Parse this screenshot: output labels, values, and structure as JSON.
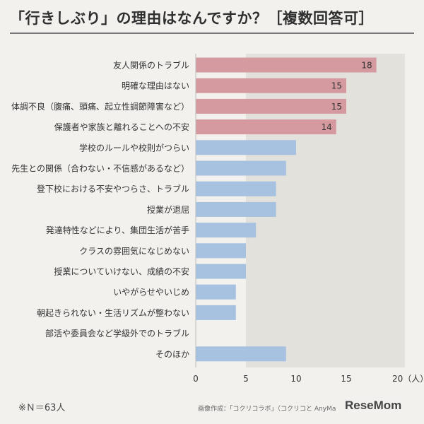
{
  "title": "「行きしぶり」の理由はなんですか？［複数回答可］",
  "note": "※Ｎ＝63人",
  "credit": "画像作成：「コクリコラボ」（コクリコと AnyMa",
  "logo_text": "ReseMom",
  "colors": {
    "highlight_bar": "#d49a9f",
    "normal_bar": "#a7c1e1",
    "shaded_area": "#e3e1dc",
    "label_text": "#333333",
    "value_text": "#333333"
  },
  "chart_data": {
    "type": "bar",
    "orientation": "horizontal",
    "categories": [
      "友人関係のトラブル",
      "明確な理由はない",
      "体調不良（腹痛、頭痛、起立性調節障害など）",
      "保護者や家族と離れることへの不安",
      "学校のルールや校則がつらい",
      "先生との関係（合わない・不信感があるなど）",
      "登下校における不安やつらさ、トラブル",
      "授業が退屈",
      "発達特性などにより、集団生活が苦手",
      "クラスの雰囲気になじめない",
      "授業についていけない、成績の不安",
      "いやがらせやいじめ",
      "朝起きられない・生活リズムが整わない",
      "部活や委員会など学級外でのトラブル",
      "そのほか"
    ],
    "values": [
      18,
      15,
      15,
      14,
      10,
      9,
      8,
      8,
      6,
      5,
      5,
      4,
      4,
      0,
      9
    ],
    "highlighted": [
      true,
      true,
      true,
      true,
      false,
      false,
      false,
      false,
      false,
      false,
      false,
      false,
      false,
      false,
      false
    ],
    "value_labels": [
      "18",
      "15",
      "15",
      "14",
      "",
      "",
      "",
      "",
      "",
      "",
      "",
      "",
      "",
      "",
      ""
    ],
    "xlim": [
      0,
      20
    ],
    "xticks": [
      0,
      5,
      10,
      15,
      20
    ],
    "tick_labels": [
      "0",
      "5",
      "10",
      "15",
      "20（人）"
    ],
    "shaded_from": 5,
    "grid": false
  }
}
